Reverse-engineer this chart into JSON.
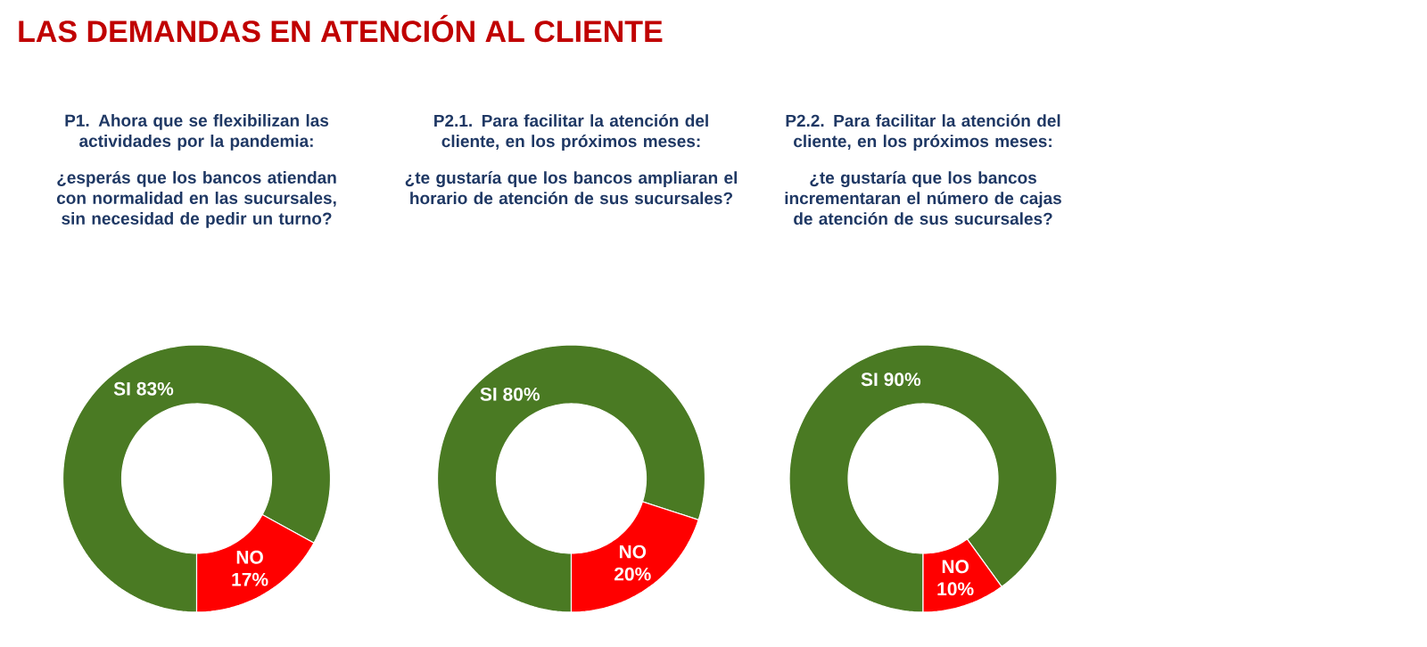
{
  "chart_data": [
    {
      "type": "other",
      "title": "LAS DEMANDAS EN ATENCIÓN AL CLIENTE"
    },
    {
      "type": "donut",
      "title": "P1. Ahora que se flexibilizan las actividades por la pandemia:",
      "subtitle": "¿esperás que los bancos atiendan con normalidad en las sucursales, sin necesidad de pedir un turno?",
      "categories": [
        "SI",
        "NO"
      ],
      "values": [
        83,
        17
      ],
      "value_labels": [
        "83%",
        "17%"
      ],
      "colors": [
        "#4a7a23",
        "#ff0000"
      ]
    },
    {
      "type": "donut",
      "title": "P2.1. Para facilitar la atención del cliente, en los próximos meses:",
      "subtitle": "¿te gustaría que los bancos ampliaran el horario de atención de sus sucursales?",
      "categories": [
        "SI",
        "NO"
      ],
      "values": [
        80,
        20
      ],
      "value_labels": [
        "80%",
        "20%"
      ],
      "colors": [
        "#4a7a23",
        "#ff0000"
      ]
    },
    {
      "type": "donut",
      "title": "P2.2. Para facilitar la atención del cliente, en los próximos meses:",
      "subtitle": "¿te gustaría que los bancos incrementaran el número de cajas de atención de sus sucursales?",
      "categories": [
        "SI",
        "NO"
      ],
      "values": [
        90,
        10
      ],
      "value_labels": [
        "90%",
        "10%"
      ],
      "colors": [
        "#4a7a23",
        "#ff0000"
      ]
    }
  ]
}
